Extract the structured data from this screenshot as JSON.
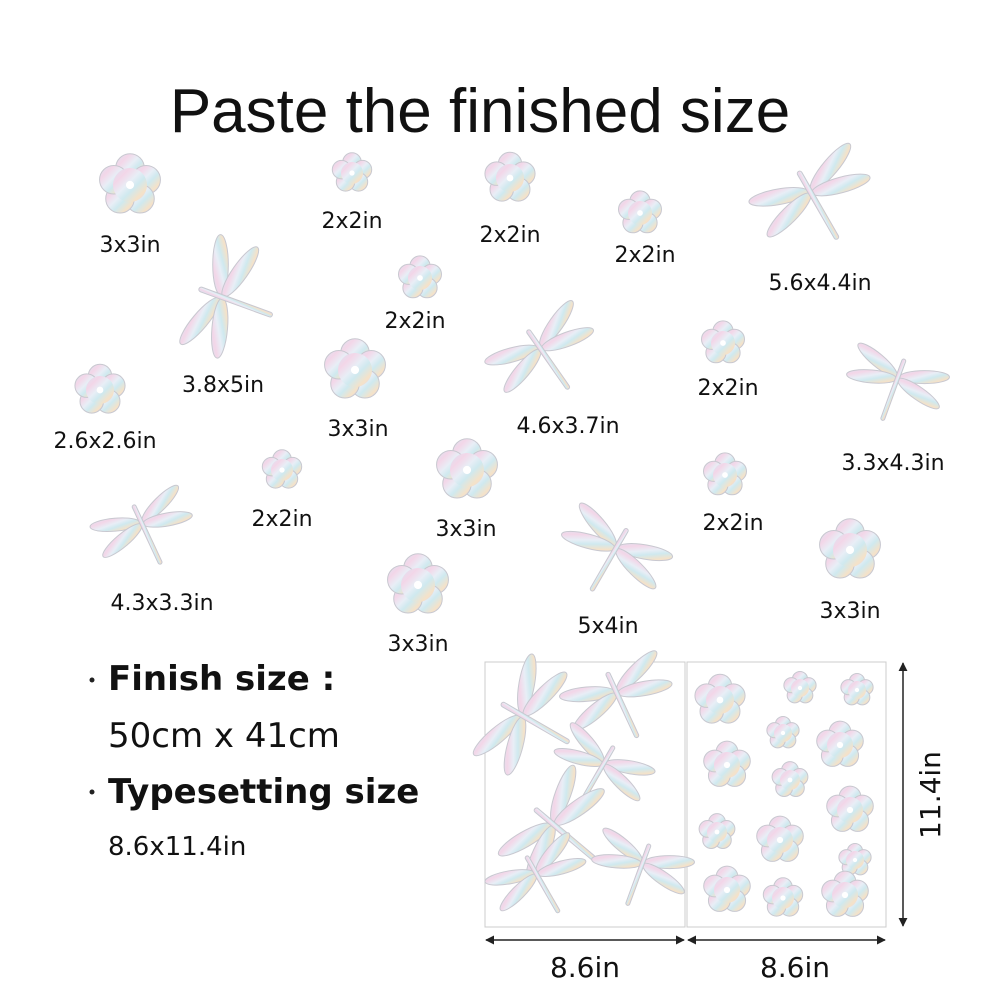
{
  "header": {
    "title": "Paste the finished size"
  },
  "items": [
    {
      "label": "3x3in"
    },
    {
      "label": "2x2in"
    },
    {
      "label": "2x2in"
    },
    {
      "label": "2x2in"
    },
    {
      "label": "5.6x4.4in"
    },
    {
      "label": "3.8x5in"
    },
    {
      "label": "2x2in"
    },
    {
      "label": "3x3in"
    },
    {
      "label": "4.6x3.7in"
    },
    {
      "label": "2x2in"
    },
    {
      "label": "3.3x4.3in"
    },
    {
      "label": "2.6x2.6in"
    },
    {
      "label": "2x2in"
    },
    {
      "label": "3x3in"
    },
    {
      "label": "2x2in"
    },
    {
      "label": "4.3x3.3in"
    },
    {
      "label": "5x4in"
    },
    {
      "label": "3x3in"
    },
    {
      "label": "3x3in"
    }
  ],
  "specs": {
    "finish_label": "Finish size :",
    "finish_value": "50cm x 41cm",
    "typesetting_label": "Typesetting size",
    "typesetting_value": "8.6x11.4in"
  },
  "sheet": {
    "width_left": "8.6in",
    "width_right": "8.6in",
    "height": "11.4in"
  }
}
